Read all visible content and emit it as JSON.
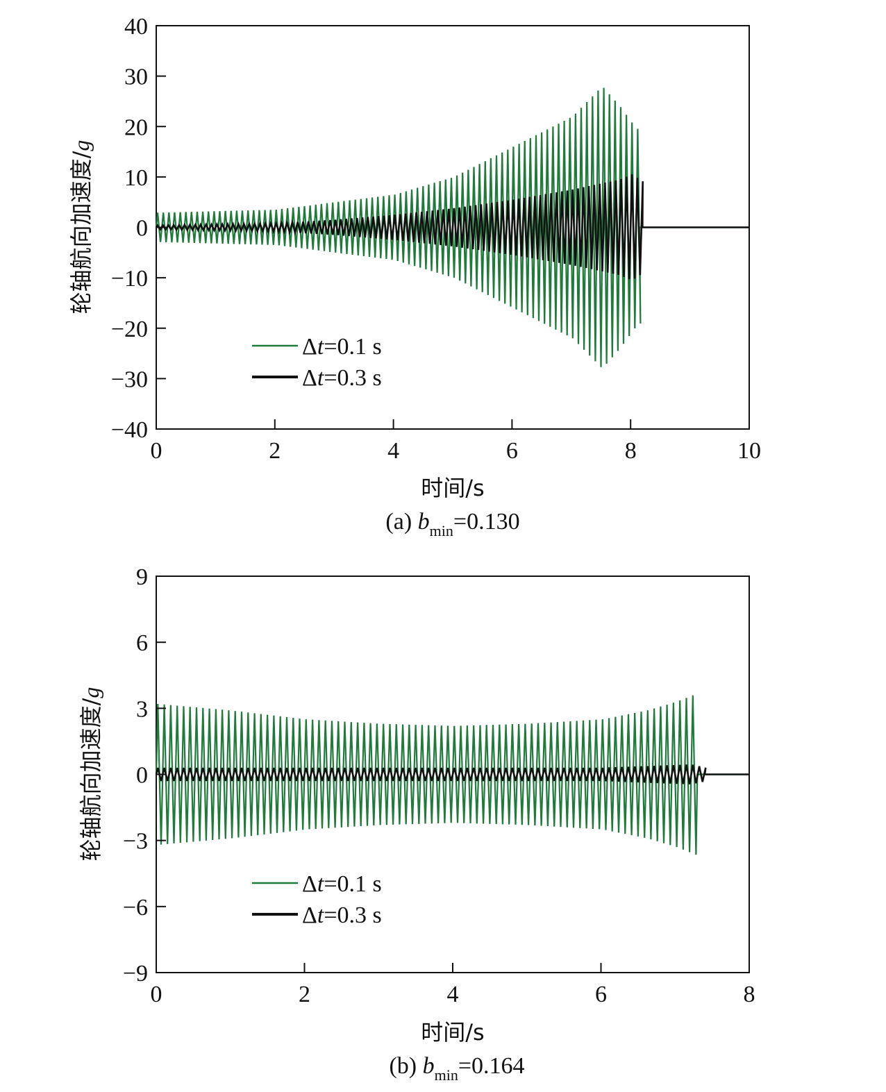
{
  "chart_data": [
    {
      "type": "line",
      "panel": "a",
      "caption": {
        "prefix": "(a) ",
        "var": "b",
        "sub": "min",
        "suffix": "=0.130"
      },
      "xlabel": "时间/s",
      "ylabel": "轮轴航向加速度/",
      "ylabel_unit": "g",
      "xlim": [
        0,
        10
      ],
      "ylim": [
        -40,
        40
      ],
      "xticks": [
        0,
        2,
        4,
        6,
        8,
        10
      ],
      "xtick_labels": [
        "0",
        "2",
        "4",
        "6",
        "8",
        "10"
      ],
      "yticks": [
        40,
        30,
        20,
        10,
        0,
        -10,
        -20,
        -30,
        -40
      ],
      "ytick_labels": [
        "40",
        "30",
        "20",
        "10",
        "0",
        "−10",
        "−20",
        "−30",
        "−40"
      ],
      "legend": {
        "placement": "lower-left",
        "items": [
          {
            "prefix": "Δ",
            "var": "t",
            "suffix": "=0.1 s",
            "color": "#1f7a3c"
          },
          {
            "prefix": "Δ",
            "var": "t",
            "suffix": "=0.3 s",
            "color": "#111111"
          }
        ]
      },
      "series": [
        {
          "name": "Δt=0.1 s",
          "color": "#1f7a3c",
          "frequency_hz": 10.5,
          "t_end": 8.15,
          "envelope": [
            [
              0,
              2.9
            ],
            [
              2,
              3.5
            ],
            [
              4,
              6.5
            ],
            [
              5,
              10
            ],
            [
              6,
              16
            ],
            [
              7,
              22
            ],
            [
              7.5,
              28
            ],
            [
              7.8,
              24
            ],
            [
              8.05,
              20
            ],
            [
              8.15,
              19
            ]
          ]
        },
        {
          "name": "Δt=0.3 s",
          "color": "#111111",
          "frequency_hz": 11.0,
          "t_end": 8.2,
          "envelope": [
            [
              0,
              0.4
            ],
            [
              1,
              0.6
            ],
            [
              2,
              0.8
            ],
            [
              3,
              1.5
            ],
            [
              4,
              2.5
            ],
            [
              5,
              3.8
            ],
            [
              6,
              5.5
            ],
            [
              7,
              7.5
            ],
            [
              7.8,
              9.5
            ],
            [
              8.0,
              10.5
            ],
            [
              8.2,
              9
            ]
          ]
        }
      ]
    },
    {
      "type": "line",
      "panel": "b",
      "caption": {
        "prefix": "(b) ",
        "var": "b",
        "sub": "min",
        "suffix": "=0.164"
      },
      "xlabel": "时间/s",
      "ylabel": "轮轴航向加速度/",
      "ylabel_unit": "g",
      "xlim": [
        0,
        8
      ],
      "ylim": [
        -9,
        9
      ],
      "xticks": [
        0,
        2,
        4,
        6,
        8
      ],
      "xtick_labels": [
        "0",
        "2",
        "4",
        "6",
        "8"
      ],
      "yticks": [
        9,
        6,
        3,
        0,
        -3,
        -6,
        -9
      ],
      "ytick_labels": [
        "9",
        "6",
        "3",
        "0",
        "−3",
        "−6",
        "−9"
      ],
      "legend": {
        "placement": "lower-left",
        "items": [
          {
            "prefix": "Δ",
            "var": "t",
            "suffix": "=0.1 s",
            "color": "#1f7a3c"
          },
          {
            "prefix": "Δ",
            "var": "t",
            "suffix": "=0.3 s",
            "color": "#111111"
          }
        ]
      },
      "series": [
        {
          "name": "Δt=0.1 s",
          "color": "#1f7a3c",
          "frequency_hz": 11.5,
          "t_end": 7.3,
          "envelope": [
            [
              0,
              3.2
            ],
            [
              1,
              2.9
            ],
            [
              2,
              2.5
            ],
            [
              3,
              2.3
            ],
            [
              4,
              2.2
            ],
            [
              5,
              2.3
            ],
            [
              6,
              2.5
            ],
            [
              6.6,
              2.9
            ],
            [
              7.0,
              3.3
            ],
            [
              7.3,
              3.7
            ]
          ]
        },
        {
          "name": "Δt=0.3 s",
          "color": "#111111",
          "frequency_hz": 11.5,
          "t_end": 7.4,
          "envelope": [
            [
              0,
              0.3
            ],
            [
              2,
              0.3
            ],
            [
              4,
              0.3
            ],
            [
              6,
              0.3
            ],
            [
              7.2,
              0.45
            ],
            [
              7.4,
              0.3
            ]
          ]
        }
      ]
    }
  ]
}
